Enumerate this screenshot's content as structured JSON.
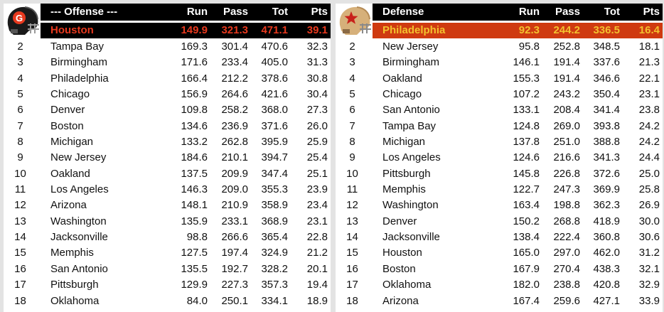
{
  "offense": {
    "header": {
      "title": "--- Offense ---",
      "run": "Run",
      "pass": "Pass",
      "tot": "Tot",
      "pts": "Pts"
    },
    "leader": {
      "team": "Houston",
      "run": "149.9",
      "pass": "321.3",
      "tot": "471.1",
      "pts": "39.1"
    },
    "rows": [
      {
        "rank": "2",
        "team": "Tampa Bay",
        "run": "169.3",
        "pass": "301.4",
        "tot": "470.6",
        "pts": "32.3"
      },
      {
        "rank": "3",
        "team": "Birmingham",
        "run": "171.6",
        "pass": "233.4",
        "tot": "405.0",
        "pts": "31.3"
      },
      {
        "rank": "4",
        "team": "Philadelphia",
        "run": "166.4",
        "pass": "212.2",
        "tot": "378.6",
        "pts": "30.8"
      },
      {
        "rank": "5",
        "team": "Chicago",
        "run": "156.9",
        "pass": "264.6",
        "tot": "421.6",
        "pts": "30.4"
      },
      {
        "rank": "6",
        "team": "Denver",
        "run": "109.8",
        "pass": "258.2",
        "tot": "368.0",
        "pts": "27.3"
      },
      {
        "rank": "7",
        "team": "Boston",
        "run": "134.6",
        "pass": "236.9",
        "tot": "371.6",
        "pts": "26.0"
      },
      {
        "rank": "8",
        "team": "Michigan",
        "run": "133.2",
        "pass": "262.8",
        "tot": "395.9",
        "pts": "25.9"
      },
      {
        "rank": "9",
        "team": "New Jersey",
        "run": "184.6",
        "pass": "210.1",
        "tot": "394.7",
        "pts": "25.4"
      },
      {
        "rank": "10",
        "team": "Oakland",
        "run": "137.5",
        "pass": "209.9",
        "tot": "347.4",
        "pts": "25.1"
      },
      {
        "rank": "11",
        "team": "Los Angeles",
        "run": "146.3",
        "pass": "209.0",
        "tot": "355.3",
        "pts": "23.9"
      },
      {
        "rank": "12",
        "team": "Arizona",
        "run": "148.1",
        "pass": "210.9",
        "tot": "358.9",
        "pts": "23.4"
      },
      {
        "rank": "13",
        "team": "Washington",
        "run": "135.9",
        "pass": "233.1",
        "tot": "368.9",
        "pts": "23.1"
      },
      {
        "rank": "14",
        "team": "Jacksonville",
        "run": "98.8",
        "pass": "266.6",
        "tot": "365.4",
        "pts": "22.8"
      },
      {
        "rank": "15",
        "team": "Memphis",
        "run": "127.5",
        "pass": "197.4",
        "tot": "324.9",
        "pts": "21.2"
      },
      {
        "rank": "16",
        "team": "San Antonio",
        "run": "135.5",
        "pass": "192.7",
        "tot": "328.2",
        "pts": "20.1"
      },
      {
        "rank": "17",
        "team": "Pittsburgh",
        "run": "129.9",
        "pass": "227.3",
        "tot": "357.3",
        "pts": "19.4"
      },
      {
        "rank": "18",
        "team": "Oklahoma",
        "run": "84.0",
        "pass": "250.1",
        "tot": "334.1",
        "pts": "18.9"
      }
    ],
    "logo": {
      "icon": "gamblers-helmet-icon",
      "shell_color": "#1a1a1a",
      "accent_color": "#e8391e"
    }
  },
  "defense": {
    "header": {
      "title": "Defense",
      "run": "Run",
      "pass": "Pass",
      "tot": "Tot",
      "pts": "Pts"
    },
    "leader": {
      "team": "Philadelphia",
      "run": "92.3",
      "pass": "244.2",
      "tot": "336.5",
      "pts": "16.4"
    },
    "rows": [
      {
        "rank": "2",
        "team": "New Jersey",
        "run": "95.8",
        "pass": "252.8",
        "tot": "348.5",
        "pts": "18.1"
      },
      {
        "rank": "3",
        "team": "Birmingham",
        "run": "146.1",
        "pass": "191.4",
        "tot": "337.6",
        "pts": "21.3"
      },
      {
        "rank": "4",
        "team": "Oakland",
        "run": "155.3",
        "pass": "191.4",
        "tot": "346.6",
        "pts": "22.1"
      },
      {
        "rank": "5",
        "team": "Chicago",
        "run": "107.2",
        "pass": "243.2",
        "tot": "350.4",
        "pts": "23.1"
      },
      {
        "rank": "6",
        "team": "San Antonio",
        "run": "133.1",
        "pass": "208.4",
        "tot": "341.4",
        "pts": "23.8"
      },
      {
        "rank": "7",
        "team": "Tampa Bay",
        "run": "124.8",
        "pass": "269.0",
        "tot": "393.8",
        "pts": "24.2"
      },
      {
        "rank": "8",
        "team": "Michigan",
        "run": "137.8",
        "pass": "251.0",
        "tot": "388.8",
        "pts": "24.2"
      },
      {
        "rank": "9",
        "team": "Los Angeles",
        "run": "124.6",
        "pass": "216.6",
        "tot": "341.3",
        "pts": "24.4"
      },
      {
        "rank": "10",
        "team": "Pittsburgh",
        "run": "145.8",
        "pass": "226.8",
        "tot": "372.6",
        "pts": "25.0"
      },
      {
        "rank": "11",
        "team": "Memphis",
        "run": "122.7",
        "pass": "247.3",
        "tot": "369.9",
        "pts": "25.8"
      },
      {
        "rank": "12",
        "team": "Washington",
        "run": "163.4",
        "pass": "198.8",
        "tot": "362.3",
        "pts": "26.9"
      },
      {
        "rank": "13",
        "team": "Denver",
        "run": "150.2",
        "pass": "268.8",
        "tot": "418.9",
        "pts": "30.0"
      },
      {
        "rank": "14",
        "team": "Jacksonville",
        "run": "138.4",
        "pass": "222.4",
        "tot": "360.8",
        "pts": "30.6"
      },
      {
        "rank": "15",
        "team": "Houston",
        "run": "165.0",
        "pass": "297.0",
        "tot": "462.0",
        "pts": "31.2"
      },
      {
        "rank": "16",
        "team": "Boston",
        "run": "167.9",
        "pass": "270.4",
        "tot": "438.3",
        "pts": "32.1"
      },
      {
        "rank": "17",
        "team": "Oklahoma",
        "run": "182.0",
        "pass": "238.8",
        "tot": "420.8",
        "pts": "32.9"
      },
      {
        "rank": "18",
        "team": "Arizona",
        "run": "167.4",
        "pass": "259.6",
        "tot": "427.1",
        "pts": "33.9"
      }
    ],
    "logo": {
      "icon": "stars-helmet-icon",
      "shell_color": "#d6b07a",
      "accent_color": "#c8201a"
    }
  }
}
